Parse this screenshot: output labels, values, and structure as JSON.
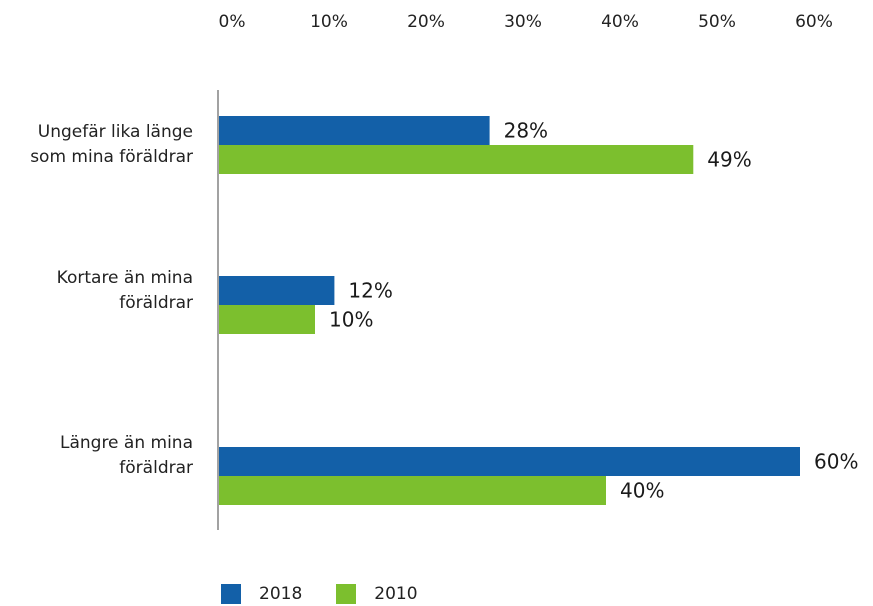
{
  "chart_data": {
    "type": "bar",
    "orientation": "horizontal",
    "title": "",
    "xlabel": "",
    "ylabel": "",
    "x_ticks": [
      "0%",
      "10%",
      "20%",
      "30%",
      "40%",
      "50%",
      "60%"
    ],
    "xlim": [
      0,
      60
    ],
    "categories": [
      "Ungefär lika länge som mina föräldrar",
      "Kortare än mina föräldrar",
      "Längre än mina föräldrar"
    ],
    "series": [
      {
        "name": "2018",
        "color": "#1360a8",
        "values": [
          28,
          12,
          60
        ],
        "labels": [
          "28%",
          "12%",
          "60%"
        ]
      },
      {
        "name": "2010",
        "color": "#7cbf2e",
        "values": [
          49,
          10,
          40
        ],
        "labels": [
          "49%",
          "10%",
          "40%"
        ]
      }
    ],
    "grid": false,
    "legend_position": "bottom-left"
  }
}
